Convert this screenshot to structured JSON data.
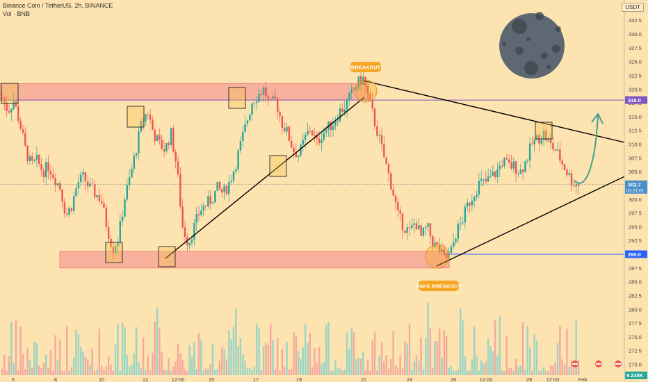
{
  "header": {
    "symbol_line": "Binance Coin / TetherUS, 2h, BINANCE",
    "volume_line": "Vol · BNB",
    "currency": "USDT"
  },
  "annotations": {
    "breakout": "BREAKOUT",
    "fake_breakout": "FAKE BREAKOUT"
  },
  "price_labels": {
    "resistance": "318.0",
    "support": "290.0",
    "current_price": "302.7",
    "countdown": "01:21:01",
    "volume": "9.238K"
  },
  "colors": {
    "background": "#fde3b0",
    "up_candle": "#26a69a",
    "down_candle": "#ef5350",
    "zone_fill": "#f4a096",
    "resistance_line": "#7e57c2",
    "support_line": "#2962ff",
    "trendline": "#000000",
    "annotation": "#f5a623",
    "moon": "#5e6872",
    "projection": "#43a08f"
  },
  "icons": [
    "moon-icon",
    "projection-arrow-icon",
    "flag-icon"
  ],
  "chart_data": {
    "type": "candlestick",
    "title": "Binance Coin / TetherUS, 2h, BINANCE",
    "x_tick_labels": [
      "6",
      "8",
      "10",
      "12",
      "12:00",
      "15",
      "17",
      "19",
      "22",
      "24",
      "26",
      "12:00",
      "29",
      "12:00",
      "Feb"
    ],
    "y_tick_labels": [
      "332.5",
      "330.0",
      "327.5",
      "325.0",
      "322.5",
      "320.0",
      "317.5",
      "315.0",
      "312.5",
      "310.0",
      "307.5",
      "305.0",
      "302.5",
      "300.0",
      "297.5",
      "295.0",
      "292.5",
      "290.0",
      "287.5",
      "285.0",
      "282.5",
      "280.0",
      "277.5",
      "275.0",
      "272.5",
      "270.0"
    ],
    "ylim": [
      270,
      334
    ],
    "resistance_zone": [
      318,
      321
    ],
    "support_zone": [
      287.5,
      290.5
    ],
    "resistance_level": 318.0,
    "support_level": 290.0,
    "current_price": 302.7,
    "volume": "9.238K",
    "price_series": [
      318.5,
      316,
      318,
      314,
      309,
      306,
      307,
      305,
      306,
      304,
      302,
      297,
      299,
      303,
      304,
      302,
      301,
      300,
      295,
      291,
      293,
      300,
      304,
      309,
      314,
      316,
      312,
      310,
      309,
      312,
      306,
      295,
      292,
      295,
      298,
      299,
      300,
      302,
      301,
      303,
      306,
      310,
      314,
      318,
      319,
      320,
      317,
      318,
      314,
      312,
      309,
      308,
      311,
      313,
      310,
      312,
      313,
      314,
      316,
      317,
      319,
      321,
      322,
      318,
      314,
      310,
      306,
      302,
      297,
      295,
      294,
      296,
      293,
      295,
      292,
      291,
      289,
      290,
      294,
      296,
      299,
      301,
      303,
      303,
      304,
      305,
      307,
      306,
      306,
      305,
      307,
      310,
      311,
      312,
      310,
      309,
      307,
      305,
      303,
      302.7
    ]
  }
}
